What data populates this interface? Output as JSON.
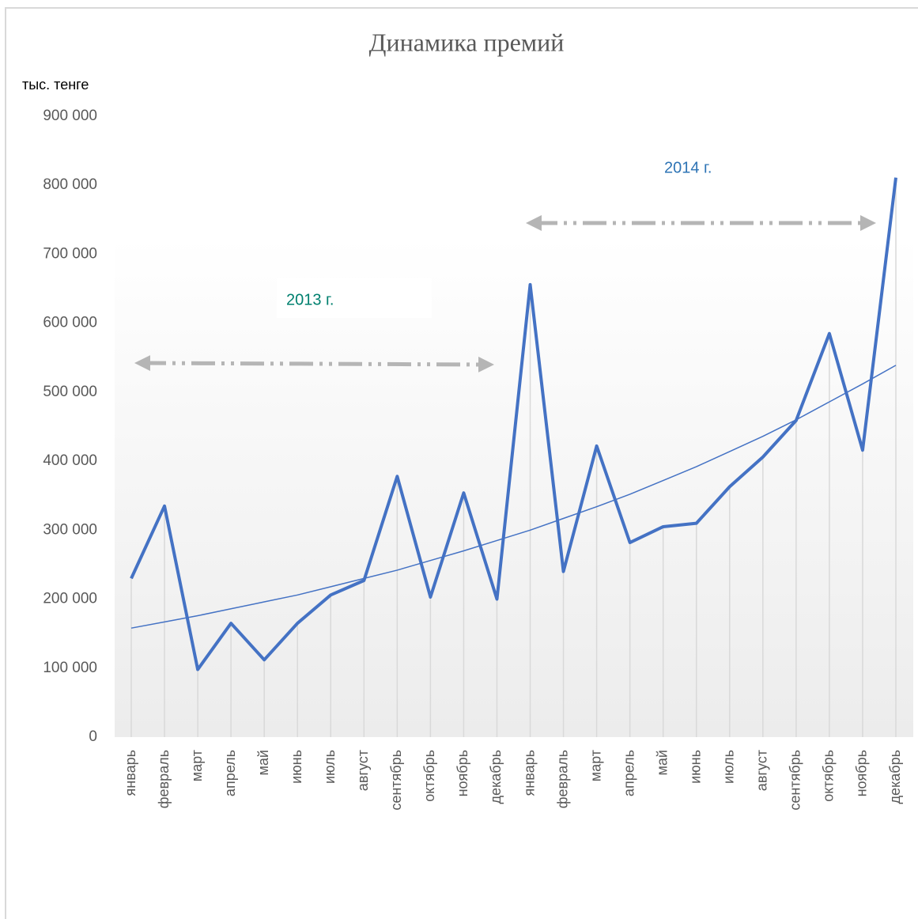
{
  "chart_data": {
    "type": "line",
    "title": "Динамика премий",
    "y_axis_label": "тыс. тенге",
    "categories": [
      "январь",
      "февраль",
      "март",
      "апрель",
      "май",
      "июнь",
      "июль",
      "август",
      "сентябрь",
      "октябрь",
      "ноябрь",
      "декабрь",
      "январь",
      "февраль",
      "март",
      "апрель",
      "май",
      "июнь",
      "июль",
      "август",
      "сентябрь",
      "октябрь",
      "ноябрь",
      "декабрь"
    ],
    "series": [
      {
        "color": "#4472c4",
        "line_width": 4,
        "values": [
          230000,
          335000,
          98000,
          165000,
          112000,
          165000,
          206000,
          227000,
          378000,
          203000,
          354000,
          200000,
          656000,
          240000,
          422000,
          282000,
          305000,
          310000,
          363000,
          406000,
          459000,
          585000,
          416000,
          811000
        ]
      },
      {
        "color": "#4472c4",
        "line_width": 1.5,
        "trendline": "exponential",
        "values": [
          158000,
          167000,
          176000,
          186000,
          196000,
          206000,
          218000,
          230000,
          242000,
          256000,
          270000,
          285000,
          300000,
          317000,
          334000,
          352000,
          372000,
          392000,
          414000,
          436000,
          460000,
          486000,
          512000,
          539000
        ]
      }
    ],
    "ylim": [
      0,
      900000
    ],
    "yticks": [
      0,
      {
        "value": 100000,
        "label": "100 000"
      },
      {
        "value": 200000,
        "label": "200 000"
      },
      {
        "value": 300000,
        "label": "300 000"
      },
      {
        "value": 400000,
        "label": "400 000"
      },
      {
        "value": 500000,
        "label": "500 000"
      },
      {
        "value": 600000,
        "label": "600 000"
      },
      {
        "value": 700000,
        "label": "700 000"
      },
      {
        "value": 800000,
        "label": "800 000"
      },
      {
        "value": 900000,
        "label": "900 000"
      }
    ],
    "drop_lines": true,
    "annotations": [
      {
        "text": "2013 г.",
        "color": "#00806f"
      },
      {
        "text": "2014 г.",
        "color": "#2e74b5"
      }
    ]
  }
}
